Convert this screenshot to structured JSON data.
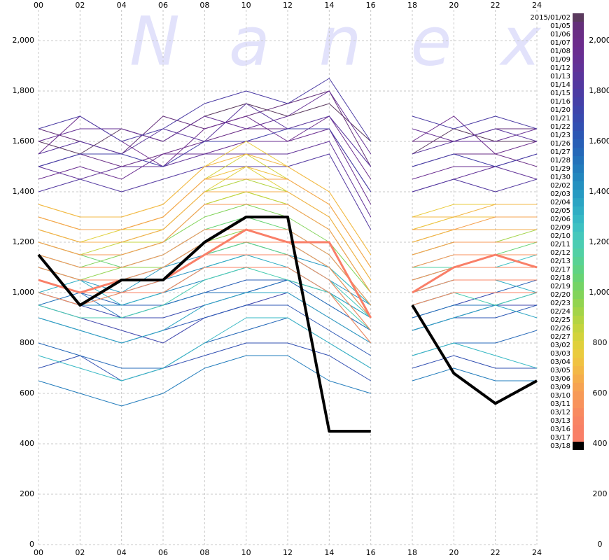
{
  "chart_data": {
    "type": "line",
    "watermark": "Nanex",
    "x": [
      0,
      2,
      4,
      6,
      8,
      10,
      12,
      14,
      16,
      17,
      18,
      20,
      22,
      24
    ],
    "xlim": [
      0,
      24
    ],
    "xticks": [
      {
        "value": 0,
        "label": "00"
      },
      {
        "value": 2,
        "label": "02"
      },
      {
        "value": 4,
        "label": "04"
      },
      {
        "value": 6,
        "label": "06"
      },
      {
        "value": 8,
        "label": "08"
      },
      10,
      12,
      14,
      16,
      18,
      20,
      22,
      24
    ],
    "ylim": [
      0,
      2100
    ],
    "yticks": [
      0,
      200,
      400,
      600,
      800,
      {
        "value": 1000,
        "label": "1,000"
      },
      {
        "value": 1200,
        "label": "1,200"
      },
      {
        "value": 1400,
        "label": "1,400"
      },
      {
        "value": 1600,
        "label": "1,600"
      },
      {
        "value": 1800,
        "label": "1,800"
      },
      {
        "value": 2000,
        "label": "2,000"
      }
    ],
    "grid": true,
    "series": [
      {
        "name": "2015/01/02",
        "color": "#5b3a5e",
        "values": [
          1600,
          1550,
          1650,
          1600,
          1700,
          1750,
          1700,
          1750,
          1600,
          null,
          1550,
          1650,
          1600,
          1600
        ]
      },
      {
        "name": "01/05",
        "color": "#642f7a",
        "values": [
          1650,
          1600,
          1550,
          1700,
          1650,
          1700,
          1750,
          1800,
          1500,
          null,
          1600,
          1600,
          1650,
          1650
        ]
      },
      {
        "name": "01/06",
        "color": "#6a2d86",
        "values": [
          1500,
          1550,
          1500,
          1550,
          1600,
          1650,
          1650,
          1650,
          1400,
          null,
          1500,
          1550,
          1550,
          1500
        ]
      },
      {
        "name": "01/07",
        "color": "#6c2c8c",
        "values": [
          1550,
          1700,
          1600,
          1500,
          1650,
          1700,
          1600,
          1700,
          1450,
          null,
          1600,
          1700,
          1550,
          1600
        ]
      },
      {
        "name": "01/08",
        "color": "#6a2d90",
        "values": [
          1450,
          1500,
          1450,
          1550,
          1550,
          1600,
          1600,
          1650,
          1350,
          null,
          1450,
          1500,
          1500,
          1550
        ]
      },
      {
        "name": "01/09",
        "color": "#662f94",
        "values": [
          1600,
          1650,
          1650,
          1600,
          1700,
          1650,
          1700,
          1800,
          1550,
          null,
          1650,
          1600,
          1600,
          1650
        ]
      },
      {
        "name": "01/12",
        "color": "#613298",
        "values": [
          1500,
          1450,
          1500,
          1500,
          1550,
          1550,
          1550,
          1600,
          1300,
          null,
          1400,
          1450,
          1500,
          1450
        ]
      },
      {
        "name": "01/13",
        "color": "#5a359c",
        "values": [
          1550,
          1600,
          1550,
          1650,
          1600,
          1750,
          1650,
          1700,
          1500,
          null,
          1550,
          1600,
          1650,
          1600
        ]
      },
      {
        "name": "01/14",
        "color": "#5338a0",
        "values": [
          1400,
          1450,
          1400,
          1450,
          1500,
          1500,
          1500,
          1550,
          1250,
          null,
          1400,
          1450,
          1400,
          1450
        ]
      },
      {
        "name": "01/15",
        "color": "#4c3ca4",
        "values": [
          1650,
          1700,
          1600,
          1650,
          1750,
          1800,
          1750,
          1850,
          1600,
          null,
          1700,
          1650,
          1700,
          1650
        ]
      },
      {
        "name": "01/16",
        "color": "#4540a8",
        "values": [
          1500,
          1550,
          1550,
          1500,
          1600,
          1600,
          1650,
          1650,
          1400,
          null,
          1500,
          1550,
          1500,
          1550
        ]
      },
      {
        "name": "01/20",
        "color": "#3e45ac",
        "values": [
          950,
          900,
          850,
          800,
          900,
          950,
          1000,
          900,
          800,
          null,
          850,
          900,
          950,
          950
        ]
      },
      {
        "name": "01/21",
        "color": "#384aaf",
        "values": [
          1000,
          950,
          900,
          900,
          950,
          1000,
          1050,
          950,
          850,
          null,
          900,
          950,
          1000,
          1000
        ]
      },
      {
        "name": "01/22",
        "color": "#3250b2",
        "values": [
          700,
          750,
          650,
          700,
          750,
          800,
          800,
          750,
          650,
          null,
          700,
          750,
          700,
          700
        ]
      },
      {
        "name": "01/23",
        "color": "#2c57b4",
        "values": [
          900,
          850,
          800,
          850,
          900,
          950,
          950,
          850,
          750,
          null,
          850,
          900,
          900,
          950
        ]
      },
      {
        "name": "01/26",
        "color": "#285fb6",
        "values": [
          1050,
          1000,
          950,
          950,
          1000,
          1050,
          1050,
          1000,
          900,
          null,
          950,
          1000,
          1000,
          1050
        ]
      },
      {
        "name": "01/27",
        "color": "#2568b8",
        "values": [
          800,
          750,
          700,
          700,
          800,
          850,
          900,
          800,
          700,
          null,
          750,
          800,
          800,
          850
        ]
      },
      {
        "name": "01/28",
        "color": "#2372ba",
        "values": [
          950,
          1000,
          900,
          950,
          1000,
          1000,
          1050,
          950,
          850,
          null,
          900,
          950,
          950,
          1000
        ]
      },
      {
        "name": "01/29",
        "color": "#227cbc",
        "values": [
          650,
          600,
          550,
          600,
          700,
          750,
          750,
          650,
          600,
          null,
          650,
          700,
          650,
          650
        ]
      },
      {
        "name": "01/30",
        "color": "#2286be",
        "values": [
          1000,
          950,
          950,
          1000,
          1050,
          1100,
          1100,
          1000,
          900,
          null,
          950,
          1000,
          1000,
          1000
        ]
      },
      {
        "name": "02/02",
        "color": "#2490c0",
        "values": [
          1050,
          1000,
          1000,
          1050,
          1100,
          1150,
          1150,
          1050,
          950,
          null,
          1000,
          1050,
          1050,
          1050
        ]
      },
      {
        "name": "02/03",
        "color": "#279ac2",
        "values": [
          1100,
          1050,
          1000,
          1100,
          1150,
          1200,
          1150,
          1100,
          950,
          null,
          1050,
          1100,
          1100,
          1100
        ]
      },
      {
        "name": "02/04",
        "color": "#2ba4c3",
        "values": [
          900,
          850,
          800,
          850,
          950,
          1000,
          1000,
          900,
          800,
          null,
          850,
          900,
          950,
          900
        ]
      },
      {
        "name": "02/05",
        "color": "#30aec4",
        "values": [
          1000,
          1050,
          950,
          1000,
          1100,
          1150,
          1100,
          1000,
          900,
          null,
          1000,
          1050,
          1050,
          1000
        ]
      },
      {
        "name": "02/06",
        "color": "#36b8c4",
        "values": [
          750,
          700,
          650,
          700,
          800,
          900,
          900,
          800,
          700,
          null,
          750,
          800,
          750,
          700
        ]
      },
      {
        "name": "02/09",
        "color": "#3dc1c2",
        "values": [
          1100,
          1050,
          1050,
          1100,
          1200,
          1200,
          1200,
          1100,
          950,
          null,
          1050,
          1100,
          1100,
          1150
        ]
      },
      {
        "name": "02/10",
        "color": "#45c8bc",
        "values": [
          1050,
          1000,
          1000,
          1050,
          1150,
          1150,
          1150,
          1050,
          900,
          null,
          1000,
          1050,
          1050,
          1050
        ]
      },
      {
        "name": "02/11",
        "color": "#4ccdb2",
        "values": [
          950,
          900,
          900,
          950,
          1050,
          1100,
          1050,
          1000,
          850,
          null,
          950,
          1000,
          950,
          1000
        ]
      },
      {
        "name": "02/12",
        "color": "#52d0a4",
        "values": [
          1150,
          1100,
          1100,
          1150,
          1250,
          1250,
          1250,
          1150,
          950,
          null,
          1100,
          1100,
          1150,
          1150
        ]
      },
      {
        "name": "02/13",
        "color": "#58d294",
        "values": [
          1100,
          1050,
          1050,
          1100,
          1200,
          1200,
          1200,
          1100,
          900,
          null,
          1050,
          1100,
          1100,
          1100
        ]
      },
      {
        "name": "02/17",
        "color": "#5fd384",
        "values": [
          1050,
          1000,
          1050,
          1050,
          1150,
          1200,
          1150,
          1050,
          850,
          null,
          1000,
          1050,
          1050,
          1050
        ]
      },
      {
        "name": "02/18",
        "color": "#68d474",
        "values": [
          1200,
          1150,
          1100,
          1150,
          1250,
          1300,
          1250,
          1150,
          950,
          null,
          1100,
          1150,
          1150,
          1200
        ]
      },
      {
        "name": "02/19",
        "color": "#74d466",
        "values": [
          1000,
          950,
          1000,
          1000,
          1100,
          1100,
          1100,
          1000,
          800,
          null,
          950,
          1000,
          1000,
          1000
        ]
      },
      {
        "name": "02/20",
        "color": "#82d45a",
        "values": [
          1150,
          1100,
          1150,
          1200,
          1300,
          1350,
          1300,
          1200,
          1000,
          null,
          1150,
          1200,
          1200,
          1200
        ]
      },
      {
        "name": "02/23",
        "color": "#92d450",
        "values": [
          1100,
          1050,
          1100,
          1100,
          1200,
          1250,
          1200,
          1100,
          900,
          null,
          1050,
          1100,
          1100,
          1100
        ]
      },
      {
        "name": "02/24",
        "color": "#a3d448",
        "values": [
          1200,
          1150,
          1150,
          1200,
          1350,
          1400,
          1350,
          1250,
          1000,
          null,
          1150,
          1200,
          1200,
          1250
        ]
      },
      {
        "name": "02/25",
        "color": "#b4d442",
        "values": [
          1250,
          1200,
          1200,
          1250,
          1400,
          1450,
          1400,
          1300,
          1050,
          null,
          1200,
          1250,
          1250,
          1250
        ]
      },
      {
        "name": "02/26",
        "color": "#c4d43e",
        "values": [
          1200,
          1150,
          1200,
          1200,
          1350,
          1400,
          1350,
          1250,
          1000,
          null,
          1150,
          1200,
          1200,
          1200
        ]
      },
      {
        "name": "02/27",
        "color": "#d3d33c",
        "values": [
          1300,
          1250,
          1250,
          1300,
          1450,
          1550,
          1450,
          1350,
          1100,
          null,
          1250,
          1300,
          1300,
          1300
        ]
      },
      {
        "name": "03/02",
        "color": "#e0d03c",
        "values": [
          1250,
          1200,
          1250,
          1250,
          1400,
          1500,
          1400,
          1300,
          1050,
          null,
          1200,
          1250,
          1250,
          1250
        ]
      },
      {
        "name": "03/03",
        "color": "#eacb3e",
        "values": [
          1350,
          1300,
          1300,
          1350,
          1500,
          1600,
          1500,
          1400,
          1150,
          null,
          1300,
          1350,
          1350,
          1350
        ]
      },
      {
        "name": "03/04",
        "color": "#f0c242",
        "values": [
          1300,
          1250,
          1250,
          1300,
          1450,
          1500,
          1450,
          1350,
          1100,
          null,
          1250,
          1300,
          1300,
          1300
        ]
      },
      {
        "name": "03/05",
        "color": "#f3b847",
        "values": [
          1350,
          1300,
          1300,
          1350,
          1500,
          1550,
          1500,
          1400,
          1150,
          null,
          1300,
          1300,
          1350,
          1350
        ]
      },
      {
        "name": "03/06",
        "color": "#f5ad4c",
        "values": [
          1250,
          1200,
          1200,
          1250,
          1400,
          1400,
          1400,
          1300,
          1050,
          null,
          1200,
          1250,
          1250,
          1250
        ]
      },
      {
        "name": "03/09",
        "color": "#f6a352",
        "values": [
          1300,
          1250,
          1250,
          1300,
          1450,
          1450,
          1450,
          1350,
          1100,
          null,
          1250,
          1250,
          1300,
          1300
        ]
      },
      {
        "name": "03/10",
        "color": "#f79a57",
        "values": [
          1200,
          1150,
          1150,
          1200,
          1350,
          1350,
          1350,
          1250,
          1000,
          null,
          1150,
          1200,
          1200,
          1200
        ]
      },
      {
        "name": "03/11",
        "color": "#f8925c",
        "values": [
          1150,
          1100,
          1100,
          1150,
          1250,
          1250,
          1250,
          1150,
          950,
          null,
          1100,
          1150,
          1150,
          1150
        ]
      },
      {
        "name": "03/12",
        "color": "#f88a60",
        "values": [
          1100,
          1050,
          1050,
          1100,
          1200,
          1200,
          1200,
          1100,
          900,
          null,
          1050,
          1100,
          1100,
          1100
        ]
      },
      {
        "name": "03/13",
        "color": "#f88464",
        "values": [
          1050,
          1000,
          1000,
          1050,
          1150,
          1150,
          1150,
          1050,
          850,
          null,
          1000,
          1050,
          1050,
          1050
        ]
      },
      {
        "name": "03/16",
        "color": "#f88066",
        "values": [
          1000,
          950,
          1000,
          1000,
          1100,
          1100,
          1100,
          1000,
          800,
          null,
          950,
          1000,
          1000,
          1000
        ]
      },
      {
        "name": "03/17",
        "color": "#f97f68",
        "values": [
          1050,
          1000,
          1050,
          1050,
          1150,
          1250,
          1200,
          1200,
          900,
          null,
          1000,
          1100,
          1150,
          1100
        ]
      },
      {
        "name": "03/18",
        "color": "#000000",
        "values": [
          1150,
          950,
          1050,
          1050,
          1200,
          1300,
          1300,
          450,
          450,
          null,
          950,
          680,
          560,
          650
        ]
      }
    ]
  }
}
